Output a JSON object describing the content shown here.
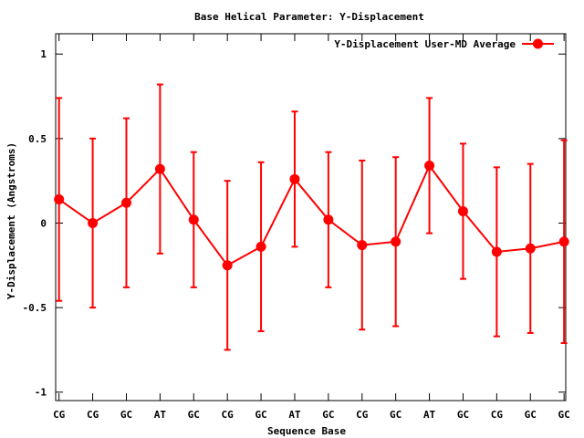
{
  "chart_data": {
    "type": "line",
    "title": "Base  Helical Parameter: Y-Displacement",
    "xlabel": "Sequence Base",
    "ylabel": "Y-Displacement (Angstroms)",
    "categories": [
      "CG",
      "CG",
      "GC",
      "AT",
      "GC",
      "CG",
      "GC",
      "AT",
      "GC",
      "CG",
      "GC",
      "AT",
      "GC",
      "CG",
      "GC",
      "GC"
    ],
    "x": [
      1,
      2,
      3,
      4,
      5,
      6,
      7,
      8,
      9,
      10,
      11,
      12,
      13,
      14,
      15,
      16
    ],
    "xlim": [
      0.9,
      16.05
    ],
    "ylim": [
      -1.05,
      1.12
    ],
    "yticks": [
      -1,
      -0.5,
      0,
      0.5,
      1
    ],
    "ytick_labels": [
      "-1",
      "-0.5",
      "0",
      "0.5",
      "1"
    ],
    "legend_position": "top-right",
    "series": [
      {
        "name": "Y-Displacement User-MD Average",
        "color": "#ff0000",
        "values": [
          0.14,
          0.0,
          0.12,
          0.32,
          0.02,
          -0.25,
          -0.14,
          0.26,
          0.02,
          -0.13,
          -0.11,
          0.34,
          0.07,
          -0.17,
          -0.15,
          -0.11
        ],
        "errors": [
          0.6,
          0.5,
          0.5,
          0.5,
          0.4,
          0.5,
          0.5,
          0.4,
          0.4,
          0.5,
          0.5,
          0.4,
          0.4,
          0.5,
          0.5,
          0.6
        ]
      }
    ]
  }
}
